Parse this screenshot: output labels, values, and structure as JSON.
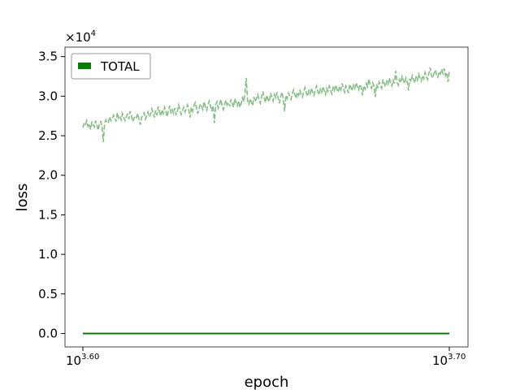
{
  "chart_data": {
    "type": "line",
    "title": "",
    "xlabel": "epoch",
    "ylabel": "loss",
    "x_scale": "log",
    "xlim": [
      3981,
      5012
    ],
    "ylim": [
      -1700,
      36200
    ],
    "y_multiplier_label": "×10",
    "y_multiplier_exponent": "4",
    "x_ticks": [
      {
        "base": "10",
        "exponent": "3.60",
        "value": 3981
      },
      {
        "base": "10",
        "exponent": "3.70",
        "value": 5012
      }
    ],
    "y_ticks": [
      {
        "label": "0.0",
        "value": 0
      },
      {
        "label": "0.5",
        "value": 5000
      },
      {
        "label": "1.0",
        "value": 10000
      },
      {
        "label": "1.5",
        "value": 15000
      },
      {
        "label": "2.0",
        "value": 20000
      },
      {
        "label": "2.5",
        "value": 25000
      },
      {
        "label": "3.0",
        "value": 30000
      },
      {
        "label": "3.5",
        "value": 35000
      }
    ],
    "grid": false,
    "legend": {
      "placement": "top-left",
      "entries": [
        "TOTAL"
      ]
    },
    "series": [
      {
        "name": "TOTAL",
        "color": "#008000",
        "style": "solid",
        "x": [
          3981,
          5012
        ],
        "values": [
          0,
          0
        ]
      },
      {
        "color": "#80bf80",
        "style": "dashed",
        "x_range": [
          3981,
          5012
        ],
        "values": [
          26000,
          26600,
          26400,
          26900,
          26200,
          26500,
          25800,
          26700,
          26400,
          26100,
          26900,
          26300,
          25700,
          26600,
          26800,
          26200,
          24200,
          26500,
          27000,
          26600,
          26700,
          27400,
          26900,
          27100,
          27600,
          27300,
          26800,
          27900,
          27200,
          27500,
          27000,
          27800,
          27300,
          26900,
          27400,
          27700,
          27100,
          28100,
          27600,
          26800,
          27200,
          27500,
          27300,
          27800,
          27000,
          26400,
          27300,
          27600,
          27900,
          27100,
          27500,
          28000,
          27400,
          27700,
          28400,
          27900,
          27300,
          28200,
          27600,
          28700,
          28000,
          27500,
          28300,
          27800,
          28600,
          28100,
          27400,
          28200,
          28800,
          27900,
          28300,
          27800,
          28500,
          27600,
          28100,
          28900,
          28400,
          27700,
          28200,
          28600,
          28000,
          28400,
          28900,
          28200,
          27300,
          28600,
          28100,
          28800,
          29200,
          28500,
          27800,
          28400,
          29000,
          28700,
          28300,
          29300,
          28600,
          28200,
          28900,
          29400,
          28700,
          28100,
          28800,
          26600,
          28900,
          29300,
          28500,
          28900,
          29600,
          28800,
          28300,
          29000,
          29500,
          28900,
          29200,
          28700,
          29600,
          29100,
          28600,
          29700,
          29200,
          28800,
          29400,
          28600,
          29100,
          29800,
          29300,
          30500,
          32300,
          29400,
          29000,
          29700,
          29200,
          28800,
          29900,
          29300,
          29700,
          30200,
          29500,
          29100,
          30000,
          30600,
          29800,
          29200,
          30100,
          29600,
          29300,
          30400,
          29900,
          29400,
          30200,
          29800,
          30500,
          29700,
          29100,
          30000,
          30500,
          29600,
          28100,
          30100,
          29700,
          30400,
          30000,
          29600,
          30300,
          30800,
          30200,
          29700,
          30500,
          30100,
          30700,
          30200,
          29900,
          30600,
          31100,
          30400,
          30000,
          30700,
          30300,
          31000,
          30500,
          30100,
          30800,
          31300,
          30600,
          30200,
          30900,
          30500,
          31200,
          30700,
          30200,
          31000,
          30600,
          31300,
          30800,
          30300,
          31100,
          30700,
          31400,
          30900,
          30500,
          31200,
          30800,
          31600,
          31000,
          30500,
          31300,
          30900,
          30400,
          31500,
          31100,
          30700,
          31400,
          31000,
          31700,
          31200,
          30800,
          31500,
          31100,
          30100,
          31300,
          30900,
          31600,
          31200,
          32200,
          31400,
          31000,
          31700,
          31300,
          29900,
          31500,
          31100,
          31800,
          31400,
          31000,
          32100,
          31600,
          31200,
          31900,
          31500,
          32300,
          31700,
          31300,
          32000,
          31600,
          33200,
          31800,
          31400,
          32100,
          31700,
          32500,
          32000,
          31600,
          32300,
          31900,
          30700,
          32200,
          31800,
          32600,
          32100,
          31700,
          32400,
          32000,
          32800,
          32300,
          31900,
          32600,
          32200,
          33000,
          32500,
          32100,
          32900,
          33600,
          32600,
          32300,
          32900,
          33300,
          32700,
          32400,
          33100,
          32800,
          33400,
          32900,
          33500,
          32600,
          33000,
          31800,
          33200
        ]
      }
    ]
  }
}
